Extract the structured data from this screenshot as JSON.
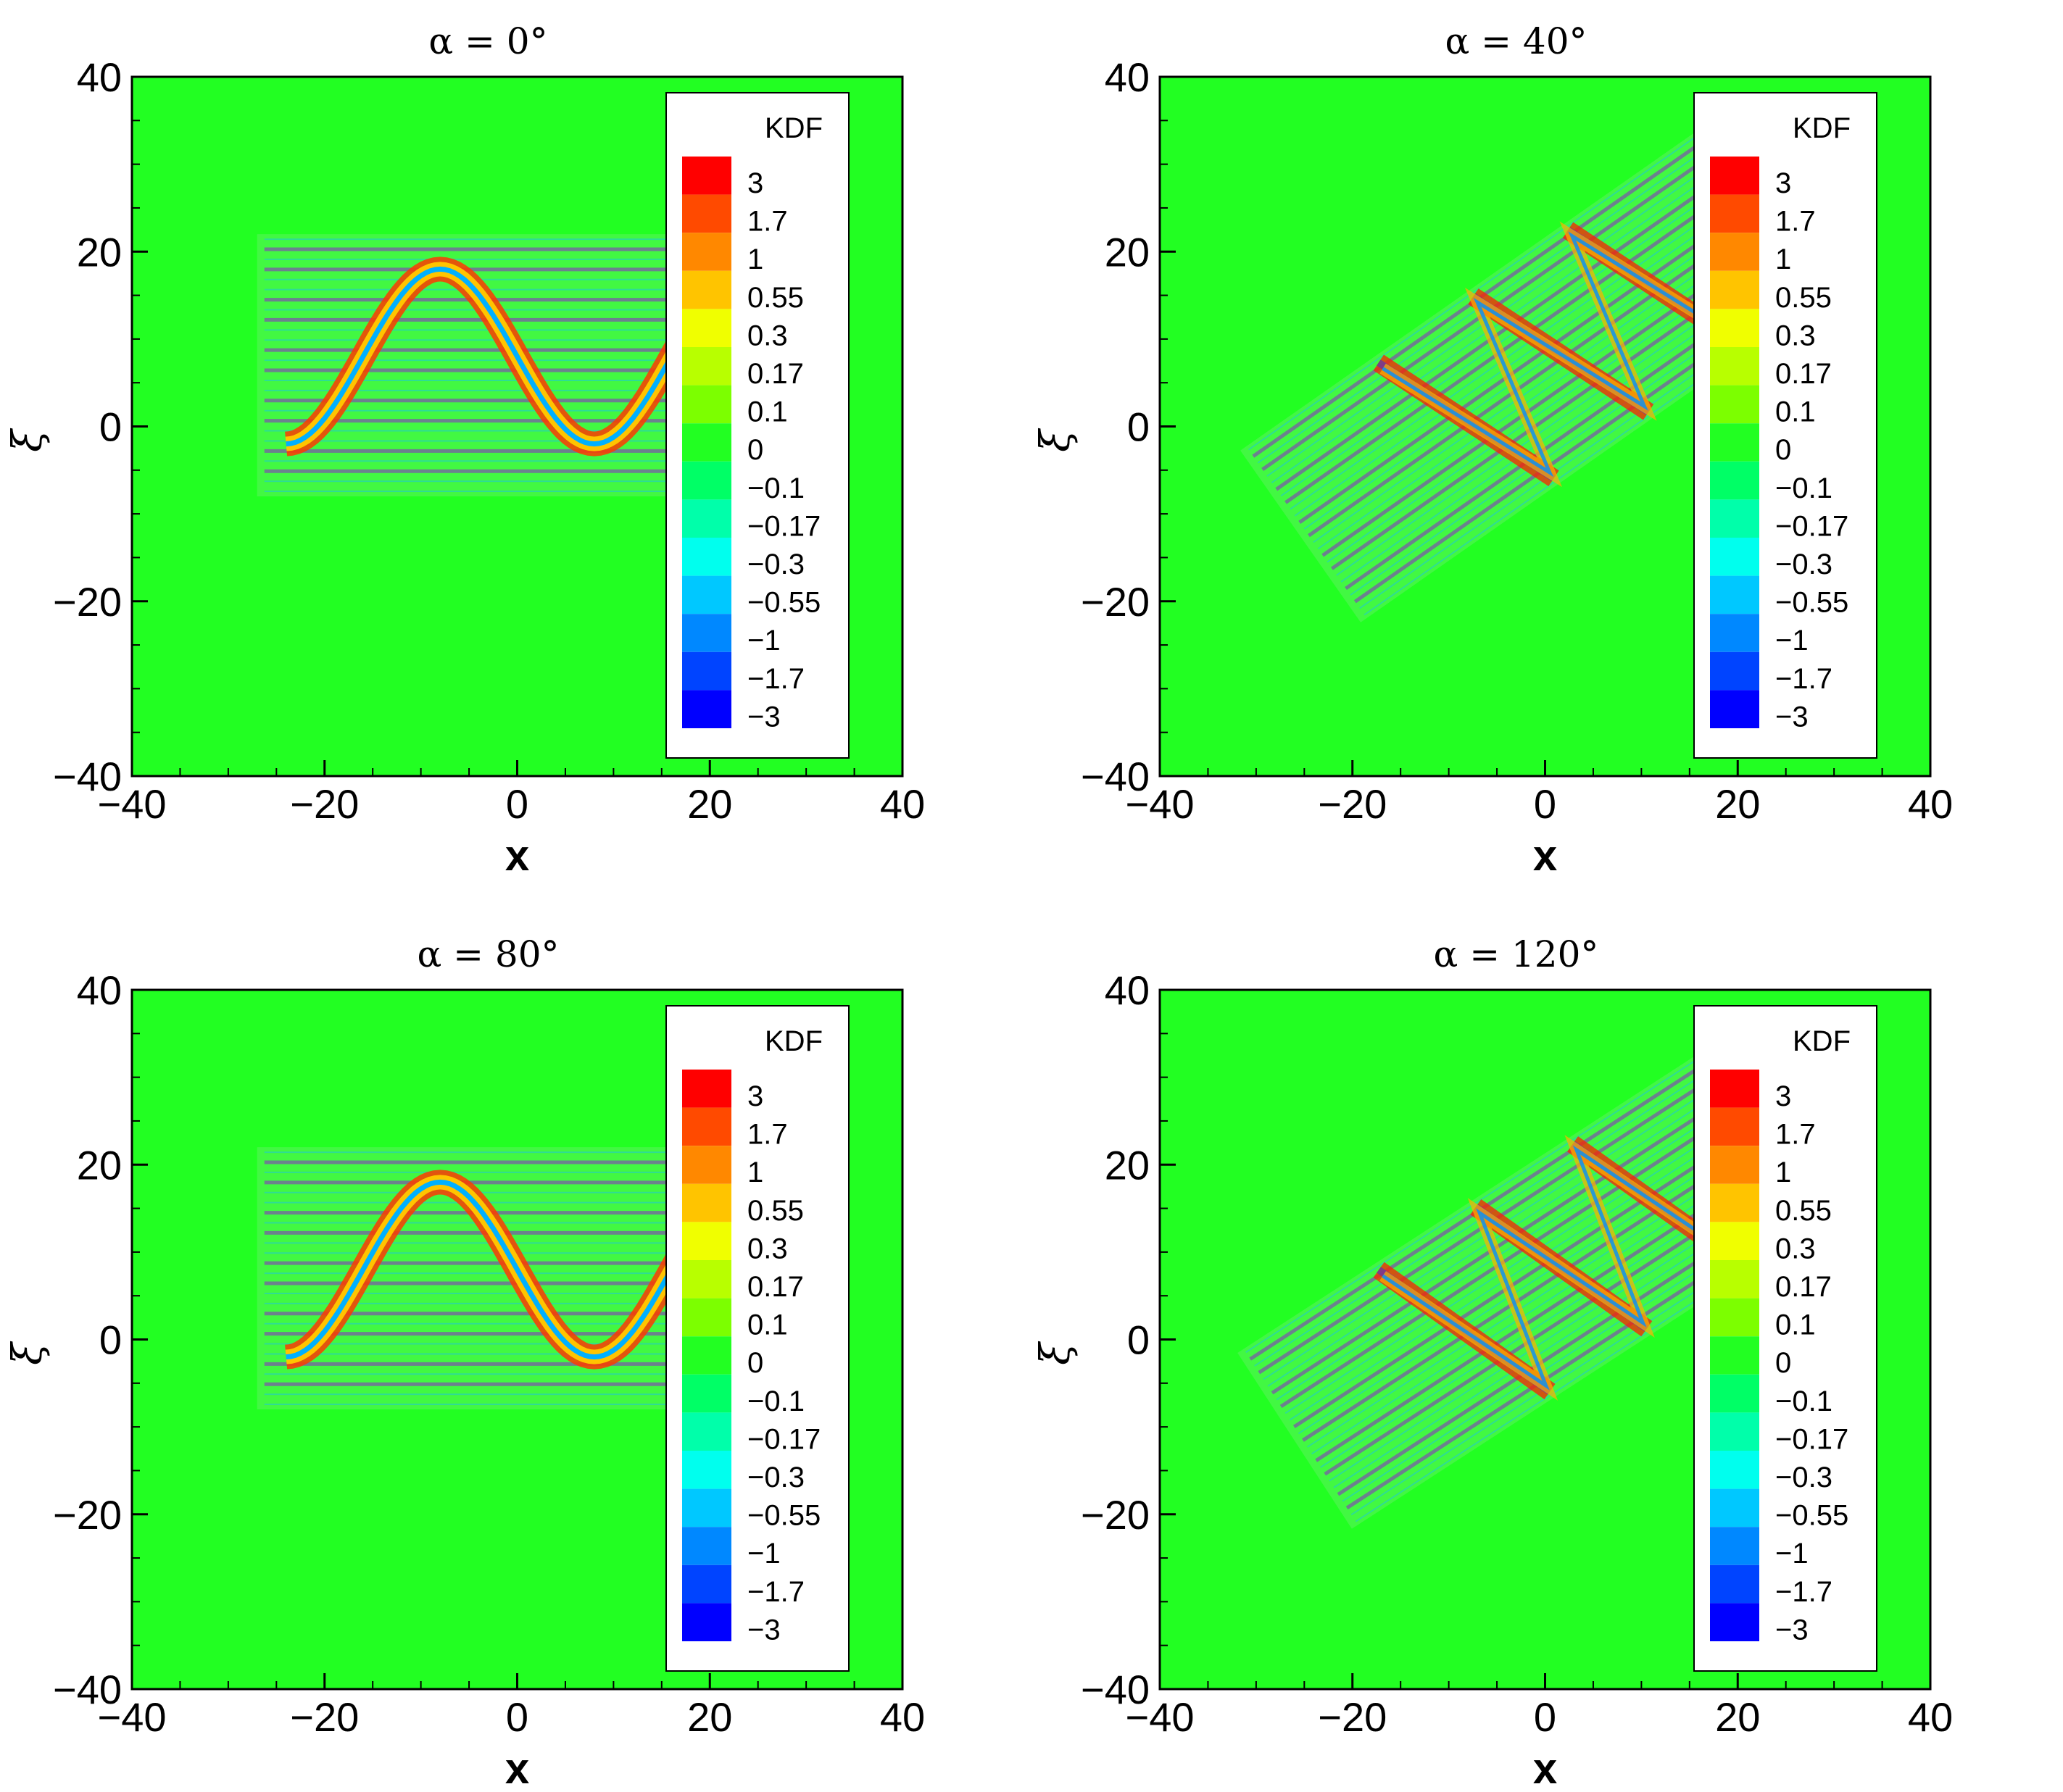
{
  "legend_title": "KDF",
  "legend_levels": [
    "3",
    "1.7",
    "1",
    "0.55",
    "0.3",
    "0.17",
    "0.1",
    "0",
    "−0.1",
    "−0.17",
    "−0.3",
    "−0.55",
    "−1",
    "−1.7",
    "−3"
  ],
  "legend_colors": [
    "#ff0000",
    "#ff4a00",
    "#ff8800",
    "#ffc400",
    "#f0ff00",
    "#b8ff00",
    "#7cff00",
    "#22ff22",
    "#00ff66",
    "#00ffaa",
    "#00ffee",
    "#00c8ff",
    "#0088ff",
    "#0044ff",
    "#0000ff"
  ],
  "background_color": "#22ff22",
  "chart_data": [
    {
      "type": "heatmap",
      "title": "α = 0°",
      "alpha_deg": 0,
      "xlabel": "x",
      "ylabel": "ξ",
      "xlim": [
        -40,
        40
      ],
      "ylim": [
        -40,
        40
      ],
      "xticks": [
        "−40",
        "−20",
        "0",
        "20",
        "40"
      ],
      "yticks": [
        "40",
        "20",
        "0",
        "−20",
        "−40"
      ],
      "wave_amplitude": 10,
      "wave_center": 8
    },
    {
      "type": "heatmap",
      "title": "α = 40°",
      "alpha_deg": 40,
      "xlabel": "x",
      "ylabel": "ξ",
      "xlim": [
        -40,
        40
      ],
      "ylim": [
        -40,
        40
      ],
      "xticks": [
        "−40",
        "−20",
        "0",
        "20",
        "40"
      ],
      "yticks": [
        "40",
        "20",
        "0",
        "−20",
        "−40"
      ],
      "wave_amplitude": 10,
      "wave_center": 8
    },
    {
      "type": "heatmap",
      "title": "α = 80°",
      "alpha_deg": 80,
      "xlabel": "x",
      "ylabel": "ξ",
      "xlim": [
        -40,
        40
      ],
      "ylim": [
        -40,
        40
      ],
      "xticks": [
        "−40",
        "−20",
        "0",
        "20",
        "40"
      ],
      "yticks": [
        "40",
        "20",
        "0",
        "−20",
        "−40"
      ],
      "wave_amplitude": 10,
      "wave_center": 8
    },
    {
      "type": "heatmap",
      "title": "α = 120°",
      "alpha_deg": 120,
      "xlabel": "x",
      "ylabel": "ξ",
      "xlim": [
        -40,
        40
      ],
      "ylim": [
        -40,
        40
      ],
      "xticks": [
        "−40",
        "−20",
        "0",
        "20",
        "40"
      ],
      "yticks": [
        "40",
        "20",
        "0",
        "−20",
        "−40"
      ],
      "wave_amplitude": 10,
      "wave_center": 8
    }
  ]
}
